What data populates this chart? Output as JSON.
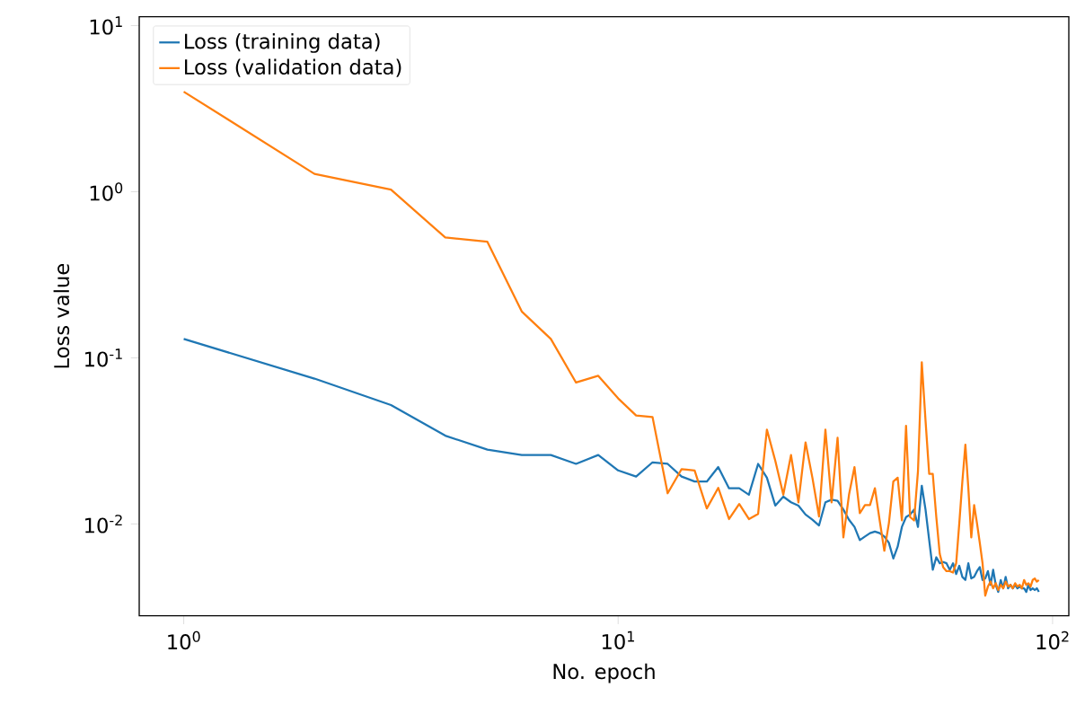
{
  "chart_data": {
    "type": "line",
    "xlabel": "No. epoch",
    "ylabel": "Loss value",
    "log": "xy",
    "legend": "top left",
    "grid": false,
    "marker": "none",
    "line_style": "solid",
    "xlim": [
      0.79,
      109
    ],
    "ylim": [
      0.0028,
      11.3
    ],
    "xticks": [
      {
        "value": 1,
        "label": "10$^{0}$"
      },
      {
        "value": 10,
        "label": "10$^{1}$"
      },
      {
        "value": 100,
        "label": "10$^{2}$"
      }
    ],
    "yticks": [
      {
        "value": 0.01,
        "label": "10$^{-2}$"
      },
      {
        "value": 0.1,
        "label": "10$^{-1}$"
      },
      {
        "value": 1,
        "label": "10$^{0}$"
      },
      {
        "value": 10,
        "label": "10$^{1}$"
      }
    ],
    "x": [
      1,
      2,
      3,
      4,
      5,
      6,
      7,
      8,
      9,
      10,
      11,
      12,
      13,
      14,
      15,
      16,
      17,
      18,
      19,
      20,
      21,
      22,
      23,
      24,
      25,
      26,
      27,
      28,
      29,
      30,
      31,
      32,
      33,
      34,
      35,
      36,
      37,
      38,
      39,
      40,
      41,
      42,
      43,
      44,
      45,
      46,
      47,
      48,
      49,
      50,
      51,
      52,
      53,
      54,
      55,
      56,
      57,
      58,
      59,
      60,
      61,
      62,
      63,
      64,
      65,
      66,
      67,
      68,
      69,
      70,
      71,
      72,
      73,
      74,
      75,
      76,
      77,
      78,
      79,
      80,
      81,
      82,
      83,
      84,
      85,
      86,
      87,
      88,
      89,
      90,
      91,
      92,
      93
    ],
    "series": [
      {
        "name": "Loss (training data)",
        "color": "#1f77b4",
        "values": [
          0.13,
          0.075,
          0.052,
          0.034,
          0.028,
          0.026,
          0.026,
          0.023,
          0.026,
          0.021,
          0.0193,
          0.0235,
          0.023,
          0.0193,
          0.018,
          0.018,
          0.022,
          0.0164,
          0.0164,
          0.015,
          0.023,
          0.019,
          0.0129,
          0.0146,
          0.0135,
          0.0129,
          0.0114,
          0.0106,
          0.0098,
          0.0135,
          0.014,
          0.0138,
          0.0122,
          0.0106,
          0.0096,
          0.008,
          0.0084,
          0.0088,
          0.009,
          0.0088,
          0.0084,
          0.0077,
          0.0062,
          0.0073,
          0.0096,
          0.011,
          0.0114,
          0.0122,
          0.0096,
          0.017,
          0.0122,
          0.008,
          0.0053,
          0.0063,
          0.0058,
          0.0059,
          0.0058,
          0.0053,
          0.0058,
          0.005,
          0.0056,
          0.0048,
          0.0046,
          0.0058,
          0.0047,
          0.0048,
          0.0052,
          0.0055,
          0.0046,
          0.0047,
          0.0052,
          0.0043,
          0.0053,
          0.0043,
          0.0039,
          0.0046,
          0.0041,
          0.0048,
          0.0041,
          0.0043,
          0.0041,
          0.0043,
          0.0041,
          0.0042,
          0.0041,
          0.0041,
          0.0039,
          0.0043,
          0.004,
          0.0041,
          0.004,
          0.0041,
          0.0039
        ]
      },
      {
        "name": "Loss (validation data)",
        "color": "#ff7f0e",
        "values": [
          4.0,
          1.28,
          1.03,
          0.53,
          0.5,
          0.19,
          0.13,
          0.071,
          0.078,
          0.057,
          0.045,
          0.044,
          0.0153,
          0.0214,
          0.021,
          0.0124,
          0.0165,
          0.0107,
          0.0132,
          0.0107,
          0.0115,
          0.037,
          0.024,
          0.015,
          0.026,
          0.0135,
          0.031,
          0.019,
          0.0111,
          0.037,
          0.0135,
          0.033,
          0.0083,
          0.015,
          0.022,
          0.0116,
          0.013,
          0.013,
          0.0164,
          0.0105,
          0.0069,
          0.0101,
          0.018,
          0.019,
          0.0105,
          0.039,
          0.011,
          0.0105,
          0.0208,
          0.094,
          0.042,
          0.02,
          0.02,
          0.011,
          0.0066,
          0.0055,
          0.0052,
          0.0052,
          0.0051,
          0.0058,
          0.0101,
          0.018,
          0.03,
          0.0164,
          0.0083,
          0.013,
          0.0101,
          0.0077,
          0.0058,
          0.0037,
          0.0042,
          0.0045,
          0.0041,
          0.0044,
          0.004,
          0.0043,
          0.0041,
          0.0045,
          0.0042,
          0.0043,
          0.0041,
          0.0044,
          0.0042,
          0.0043,
          0.0041,
          0.0046,
          0.0043,
          0.0044,
          0.0042,
          0.0046,
          0.0047,
          0.0045,
          0.0046
        ]
      }
    ]
  }
}
